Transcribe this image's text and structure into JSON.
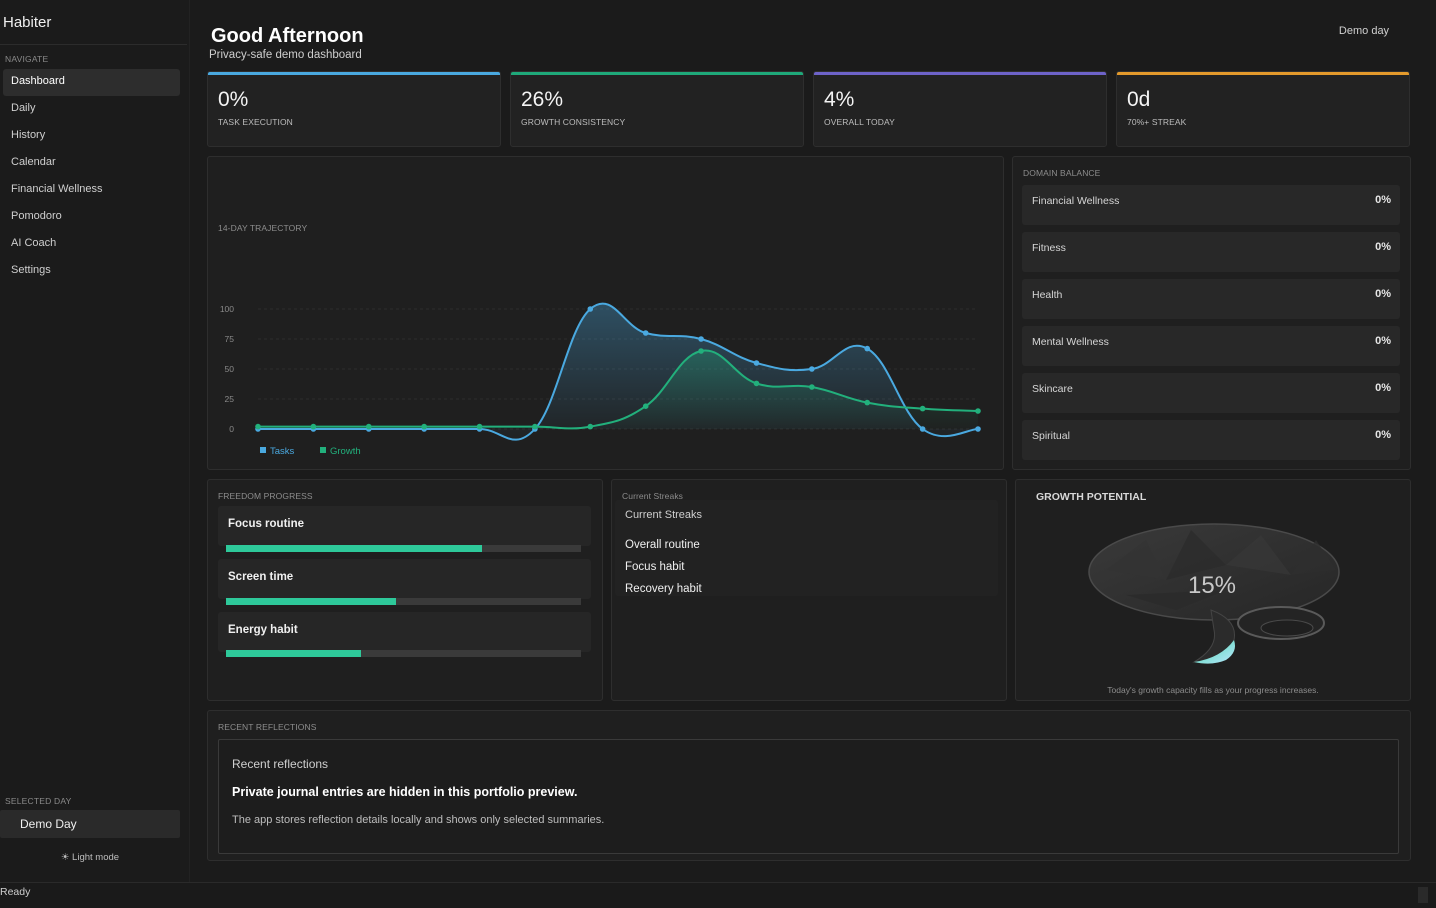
{
  "app": {
    "name": "Habiter"
  },
  "sidebar": {
    "nav_label": "NAVIGATE",
    "items": [
      {
        "label": "Dashboard",
        "active": true
      },
      {
        "label": "Daily"
      },
      {
        "label": "History"
      },
      {
        "label": "Calendar"
      },
      {
        "label": "Financial Wellness"
      },
      {
        "label": "Pomodoro"
      },
      {
        "label": "AI Coach"
      },
      {
        "label": "Settings"
      }
    ],
    "selected_day_label": "SELECTED DAY",
    "selected_day_value": "Demo Day",
    "light_mode_label": "☀ Light mode"
  },
  "header": {
    "greeting": "Good Afternoon",
    "subtitle": "Privacy-safe demo dashboard",
    "demo_day_button": "Demo day"
  },
  "stats": [
    {
      "value": "0%",
      "label": "TASK EXECUTION",
      "color": "#4aa9e0"
    },
    {
      "value": "26%",
      "label": "GROWTH CONSISTENCY",
      "color": "#1fa97a"
    },
    {
      "value": "4%",
      "label": "OVERALL TODAY",
      "color": "#6e63c9"
    },
    {
      "value": "0d",
      "label": "70%+ STREAK",
      "color": "#e39a2c"
    }
  ],
  "trajectory": {
    "title": "14-DAY TRAJECTORY"
  },
  "chart_data": {
    "type": "line",
    "title": "14-DAY TRAJECTORY",
    "x": [
      1,
      2,
      3,
      4,
      5,
      6,
      7,
      8,
      9,
      10,
      11,
      12,
      13,
      14
    ],
    "yticks": [
      0,
      25,
      50,
      75,
      100
    ],
    "ylim": [
      0,
      100
    ],
    "grid": true,
    "legend": "bottom-left",
    "series": [
      {
        "name": "Tasks",
        "color": "#4aa9e0",
        "values": [
          0,
          0,
          0,
          0,
          0,
          0,
          100,
          80,
          75,
          55,
          50,
          67,
          0,
          0
        ]
      },
      {
        "name": "Growth",
        "color": "#22b07c",
        "values": [
          2,
          2,
          2,
          2,
          2,
          2,
          2,
          19,
          65,
          38,
          35,
          22,
          17,
          15
        ]
      }
    ]
  },
  "domain_balance": {
    "title": "DOMAIN BALANCE",
    "items": [
      {
        "name": "Financial Wellness",
        "pct": "0%"
      },
      {
        "name": "Fitness",
        "pct": "0%"
      },
      {
        "name": "Health",
        "pct": "0%"
      },
      {
        "name": "Mental Wellness",
        "pct": "0%"
      },
      {
        "name": "Skincare",
        "pct": "0%"
      },
      {
        "name": "Spiritual",
        "pct": "0%"
      }
    ]
  },
  "freedom": {
    "title": "FREEDOM PROGRESS",
    "items": [
      {
        "name": "Focus routine",
        "progress": 0.72
      },
      {
        "name": "Screen time",
        "progress": 0.48
      },
      {
        "name": "Energy habit",
        "progress": 0.38
      }
    ]
  },
  "streaks": {
    "title": "Current Streaks",
    "heading": "Current Streaks",
    "items": [
      "Overall routine",
      "Focus habit",
      "Recovery habit"
    ]
  },
  "growth": {
    "title": "GROWTH POTENTIAL",
    "value": "15%",
    "caption": "Today's growth capacity fills as your progress increases."
  },
  "reflections": {
    "title": "RECENT REFLECTIONS",
    "heading": "Recent reflections",
    "strong": "Private journal entries are hidden in this portfolio preview.",
    "note": "The app stores reflection details locally and shows only selected summaries."
  },
  "status": {
    "text": "Ready"
  }
}
